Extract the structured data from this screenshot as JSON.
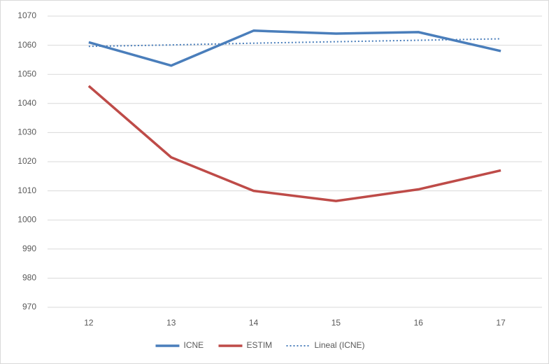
{
  "chart_data": {
    "type": "line",
    "categories": [
      "12",
      "13",
      "14",
      "15",
      "16",
      "17"
    ],
    "series": [
      {
        "name": "ICNE",
        "color": "#4a7ebb",
        "values": [
          1061,
          1053,
          1065,
          1064,
          1064.5,
          1058
        ]
      },
      {
        "name": "ESTIM",
        "color": "#be4b48",
        "values": [
          1046,
          1021.5,
          1010,
          1006.5,
          1010.5,
          1017
        ]
      },
      {
        "name": "Lineal (ICNE)",
        "color": "#4a7ebb",
        "dashed": true,
        "values": [
          1059.6,
          1060.1,
          1060.7,
          1061.2,
          1061.7,
          1062.2
        ]
      }
    ],
    "ylim": [
      970,
      1070
    ],
    "yticks": [
      970,
      980,
      990,
      1000,
      1010,
      1020,
      1030,
      1040,
      1050,
      1060,
      1070
    ],
    "grid": true,
    "legend": "bottom"
  }
}
